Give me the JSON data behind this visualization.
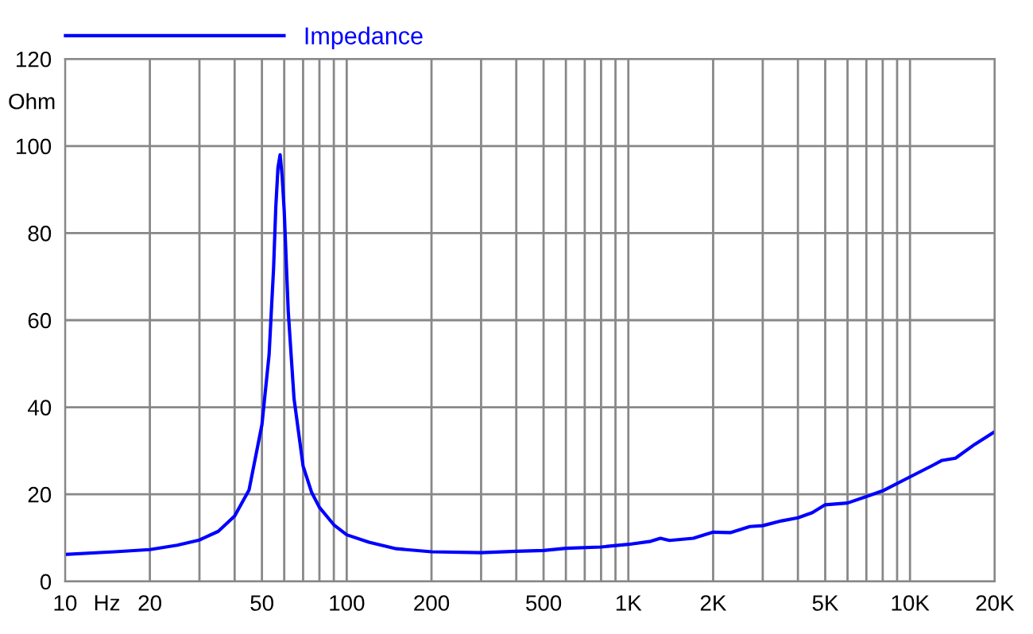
{
  "chart_data": {
    "type": "line",
    "xlabel": "Hz",
    "ylabel": "Ohm",
    "log": "x",
    "grid": true,
    "legend": "top left",
    "marker": "none",
    "line_style": "solid",
    "x": [
      10,
      15,
      20,
      25,
      30,
      35,
      40,
      45,
      50,
      53,
      55,
      56,
      57,
      58,
      59,
      60,
      62,
      65,
      70,
      75,
      80,
      90,
      100,
      120,
      150,
      200,
      300,
      400,
      500,
      600,
      800,
      1000,
      1200,
      1300,
      1400,
      1700,
      2000,
      2300,
      2700,
      3000,
      3500,
      4000,
      4500,
      5000,
      6000,
      7000,
      8000,
      10000,
      12000,
      13000,
      14500,
      17000,
      20000
    ],
    "series": [
      {
        "name": "Impedance",
        "color": "#0000ff",
        "values": [
          6.2,
          6.8,
          7.3,
          8.3,
          9.5,
          11.5,
          15,
          21,
          36,
          52,
          72,
          86,
          95,
          98,
          93,
          85,
          62,
          42,
          26.5,
          20.5,
          17,
          13,
          10.7,
          9,
          7.5,
          6.8,
          6.6,
          6.9,
          7.1,
          7.6,
          7.9,
          8.5,
          9.2,
          9.9,
          9.4,
          9.9,
          11.3,
          11.2,
          12.6,
          12.8,
          13.9,
          14.6,
          15.8,
          17.6,
          18,
          19.5,
          20.8,
          24,
          26.6,
          27.8,
          28.3,
          31.5,
          34.4
        ]
      }
    ],
    "xlim": [
      10,
      20000
    ],
    "ylim": [
      0,
      120
    ],
    "xticks": [
      10,
      20,
      {
        "value": 30,
        "label": null
      },
      {
        "value": 40,
        "label": null
      },
      50,
      {
        "value": 60,
        "label": null
      },
      {
        "value": 70,
        "label": null
      },
      {
        "value": 80,
        "label": null
      },
      {
        "value": 90,
        "label": null
      },
      100,
      200,
      {
        "value": 300,
        "label": null
      },
      {
        "value": 400,
        "label": null
      },
      500,
      {
        "value": 600,
        "label": null
      },
      {
        "value": 700,
        "label": null
      },
      {
        "value": 800,
        "label": null
      },
      {
        "value": 900,
        "label": null
      },
      {
        "value": 1000,
        "label": "1K"
      },
      {
        "value": 2000,
        "label": "2K"
      },
      {
        "value": 3000,
        "label": null
      },
      {
        "value": 4000,
        "label": null
      },
      {
        "value": 5000,
        "label": "5K"
      },
      {
        "value": 6000,
        "label": null
      },
      {
        "value": 7000,
        "label": null
      },
      {
        "value": 8000,
        "label": null
      },
      {
        "value": 9000,
        "label": null
      },
      {
        "value": 10000,
        "label": "10K"
      },
      {
        "value": 20000,
        "label": "20K"
      }
    ],
    "yticks": [
      0,
      20,
      40,
      60,
      80,
      100,
      120
    ]
  }
}
